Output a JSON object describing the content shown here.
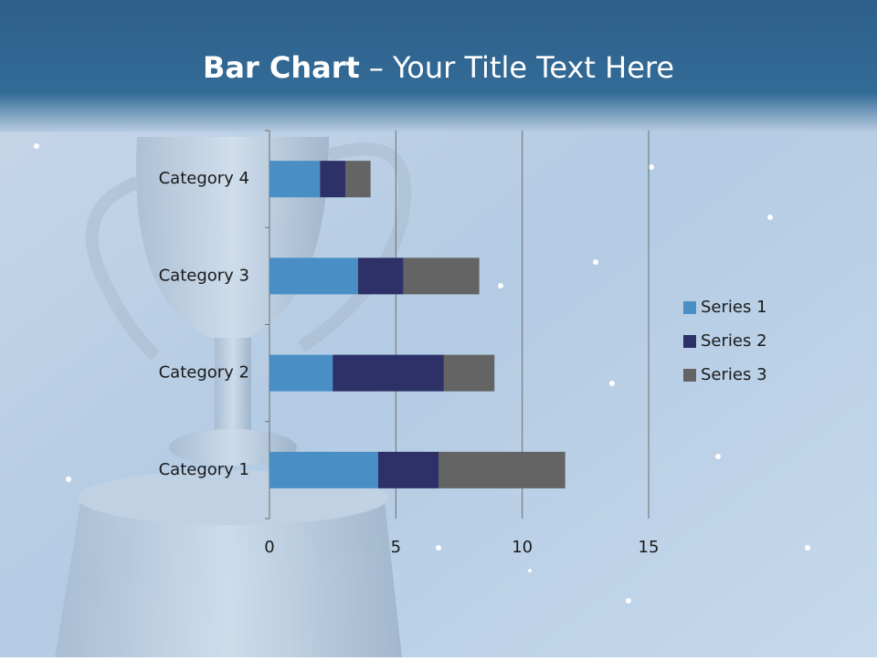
{
  "chart_data": {
    "type": "bar",
    "orientation": "horizontal",
    "stacked": true,
    "title_parts": [
      "Bar Chart",
      "– Your Title Text Here"
    ],
    "categories": [
      "Category 1",
      "Category 2",
      "Category 3",
      "Category 4"
    ],
    "series": [
      {
        "name": "Series 1",
        "color": "#4a8ec6",
        "values": [
          4.3,
          2.5,
          3.5,
          2
        ]
      },
      {
        "name": "Series 2",
        "color": "#2e3168",
        "values": [
          2.4,
          4.4,
          1.8,
          1
        ]
      },
      {
        "name": "Series 3",
        "color": "#646464",
        "values": [
          5,
          2,
          3,
          1
        ]
      }
    ],
    "xlim": [
      0,
      15
    ],
    "xticks": [
      0,
      5,
      10,
      15
    ],
    "grid": true,
    "legend": "right"
  }
}
